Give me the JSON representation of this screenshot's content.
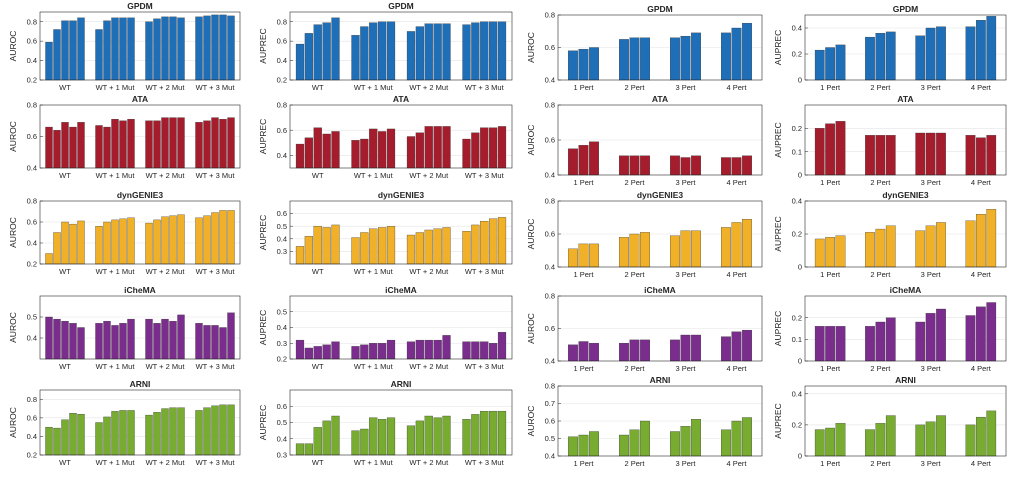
{
  "panel_colors": {
    "GPDM": "#1f6fb8",
    "ATA": "#a51d2d",
    "dynGENIE3": "#f0b128",
    "iCheMA": "#7b2d8e",
    "ARNI": "#77ac30"
  },
  "chart_data": [
    {
      "type": "bar",
      "title": "GPDM",
      "ylabel": "AUROC",
      "ylim": [
        0.2,
        0.9
      ],
      "yticks": [
        "0.2",
        "0.4",
        "0.6",
        "0.8"
      ],
      "categories": [
        "WT",
        "WT + 1 Mut",
        "WT + 2 Mut",
        "WT + 3 Mut"
      ],
      "values": [
        [
          0.59,
          0.72,
          0.81,
          0.81,
          0.84
        ],
        [
          0.72,
          0.81,
          0.84,
          0.84,
          0.84
        ],
        [
          0.8,
          0.83,
          0.85,
          0.85,
          0.84
        ],
        [
          0.85,
          0.86,
          0.87,
          0.87,
          0.86
        ]
      ],
      "grid": true
    },
    {
      "type": "bar",
      "title": "GPDM",
      "ylabel": "AUPREC",
      "ylim": [
        0.2,
        0.9
      ],
      "yticks": [
        "0.2",
        "0.4",
        "0.6",
        "0.8"
      ],
      "categories": [
        "WT",
        "WT + 1 Mut",
        "WT + 2 Mut",
        "WT + 3 Mut"
      ],
      "values": [
        [
          0.57,
          0.68,
          0.77,
          0.79,
          0.84
        ],
        [
          0.66,
          0.75,
          0.79,
          0.8,
          0.8
        ],
        [
          0.7,
          0.75,
          0.78,
          0.78,
          0.78
        ],
        [
          0.77,
          0.79,
          0.8,
          0.8,
          0.8
        ]
      ],
      "grid": true
    },
    {
      "type": "bar",
      "title": "ATA",
      "ylabel": "AUROC",
      "ylim": [
        0.4,
        0.8
      ],
      "yticks": [
        "0.4",
        "0.6",
        "0.8"
      ],
      "categories": [
        "WT",
        "WT + 1 Mut",
        "WT + 2 Mut",
        "WT + 3 Mut"
      ],
      "values": [
        [
          0.66,
          0.64,
          0.69,
          0.66,
          0.69
        ],
        [
          0.67,
          0.66,
          0.71,
          0.7,
          0.71
        ],
        [
          0.7,
          0.7,
          0.72,
          0.72,
          0.72
        ],
        [
          0.69,
          0.7,
          0.72,
          0.71,
          0.72
        ]
      ],
      "grid": true
    },
    {
      "type": "bar",
      "title": "ATA",
      "ylabel": "AUPREC",
      "ylim": [
        0.3,
        0.8
      ],
      "yticks": [
        "0.4",
        "0.6",
        "0.8"
      ],
      "categories": [
        "WT",
        "WT + 1 Mut",
        "WT + 2 Mut",
        "WT + 3 Mut"
      ],
      "values": [
        [
          0.49,
          0.54,
          0.62,
          0.57,
          0.59
        ],
        [
          0.52,
          0.53,
          0.61,
          0.59,
          0.61
        ],
        [
          0.55,
          0.58,
          0.63,
          0.63,
          0.63
        ],
        [
          0.53,
          0.58,
          0.62,
          0.62,
          0.63
        ]
      ],
      "grid": true
    },
    {
      "type": "bar",
      "title": "dynGENIE3",
      "ylabel": "AUROC",
      "ylim": [
        0.2,
        0.8
      ],
      "yticks": [
        "0.2",
        "0.4",
        "0.6",
        "0.8"
      ],
      "categories": [
        "WT",
        "WT + 1 Mut",
        "WT + 2 Mut",
        "WT + 3 Mut"
      ],
      "values": [
        [
          0.3,
          0.5,
          0.6,
          0.58,
          0.61
        ],
        [
          0.56,
          0.6,
          0.62,
          0.63,
          0.64
        ],
        [
          0.59,
          0.62,
          0.65,
          0.66,
          0.67
        ],
        [
          0.64,
          0.66,
          0.69,
          0.71,
          0.71
        ]
      ],
      "grid": true
    },
    {
      "type": "bar",
      "title": "dynGENIE3",
      "ylabel": "AUPREC",
      "ylim": [
        0.2,
        0.7
      ],
      "yticks": [
        "0.3",
        "0.4",
        "0.5",
        "0.6"
      ],
      "categories": [
        "WT",
        "WT + 1 Mut",
        "WT + 2 Mut",
        "WT + 3 Mut"
      ],
      "values": [
        [
          0.34,
          0.42,
          0.5,
          0.49,
          0.51
        ],
        [
          0.41,
          0.45,
          0.48,
          0.49,
          0.5
        ],
        [
          0.43,
          0.45,
          0.47,
          0.48,
          0.49
        ],
        [
          0.46,
          0.51,
          0.54,
          0.56,
          0.57
        ]
      ],
      "grid": true
    },
    {
      "type": "bar",
      "title": "iCheMA",
      "ylabel": "AUROC",
      "ylim": [
        0.3,
        0.6
      ],
      "yticks": [
        "0.4",
        "0.5"
      ],
      "categories": [
        "WT",
        "WT + 1 Mut",
        "WT + 2 Mut",
        "WT + 3 Mut"
      ],
      "values": [
        [
          0.5,
          0.49,
          0.48,
          0.47,
          0.45
        ],
        [
          0.47,
          0.48,
          0.46,
          0.47,
          0.49
        ],
        [
          0.49,
          0.47,
          0.49,
          0.48,
          0.51
        ],
        [
          0.47,
          0.46,
          0.46,
          0.45,
          0.52
        ]
      ],
      "grid": true
    },
    {
      "type": "bar",
      "title": "iCheMA",
      "ylabel": "AUPREC",
      "ylim": [
        0.2,
        0.6
      ],
      "yticks": [
        "0.2",
        "0.3",
        "0.4",
        "0.5"
      ],
      "categories": [
        "WT",
        "WT + 1 Mut",
        "WT + 2 Mut",
        "WT + 3 Mut"
      ],
      "values": [
        [
          0.32,
          0.27,
          0.28,
          0.29,
          0.31
        ],
        [
          0.28,
          0.29,
          0.3,
          0.3,
          0.32
        ],
        [
          0.31,
          0.32,
          0.32,
          0.32,
          0.35
        ],
        [
          0.31,
          0.31,
          0.31,
          0.3,
          0.37
        ]
      ],
      "grid": true
    },
    {
      "type": "bar",
      "title": "ARNI",
      "ylabel": "AUROC",
      "ylim": [
        0.2,
        0.9
      ],
      "yticks": [
        "0.2",
        "0.4",
        "0.6",
        "0.8"
      ],
      "categories": [
        "WT",
        "WT + 1 Mut",
        "WT + 2 Mut",
        "WT + 3 Mut"
      ],
      "values": [
        [
          0.5,
          0.49,
          0.58,
          0.65,
          0.64
        ],
        [
          0.55,
          0.61,
          0.67,
          0.68,
          0.68
        ],
        [
          0.63,
          0.66,
          0.7,
          0.71,
          0.71
        ],
        [
          0.68,
          0.71,
          0.73,
          0.74,
          0.74
        ]
      ],
      "grid": true
    },
    {
      "type": "bar",
      "title": "ARNI",
      "ylabel": "AUPREC",
      "ylim": [
        0.3,
        0.7
      ],
      "yticks": [
        "0.3",
        "0.4",
        "0.5",
        "0.6"
      ],
      "categories": [
        "WT",
        "WT + 1 Mut",
        "WT + 2 Mut",
        "WT + 3 Mut"
      ],
      "values": [
        [
          0.37,
          0.37,
          0.47,
          0.51,
          0.54
        ],
        [
          0.45,
          0.46,
          0.53,
          0.52,
          0.53
        ],
        [
          0.48,
          0.51,
          0.54,
          0.53,
          0.54
        ],
        [
          0.52,
          0.55,
          0.57,
          0.57,
          0.57
        ]
      ],
      "grid": true
    },
    {
      "type": "bar",
      "title": "GPDM",
      "ylabel": "AUROC",
      "ylim": [
        0.4,
        0.8
      ],
      "yticks": [
        "0.4",
        "0.6",
        "0.8"
      ],
      "categories": [
        "1 Pert",
        "2 Pert",
        "3 Pert",
        "4 Pert"
      ],
      "values": [
        [
          0.58,
          0.59,
          0.6
        ],
        [
          0.65,
          0.66,
          0.66
        ],
        [
          0.66,
          0.67,
          0.69
        ],
        [
          0.69,
          0.72,
          0.75
        ]
      ],
      "grid": true
    },
    {
      "type": "bar",
      "title": "GPDM",
      "ylabel": "AUPREC",
      "ylim": [
        0.0,
        0.5
      ],
      "yticks": [
        "0",
        "0.2",
        "0.4"
      ],
      "categories": [
        "1 Pert",
        "2 Pert",
        "3 Pert",
        "4 Pert"
      ],
      "values": [
        [
          0.23,
          0.25,
          0.27
        ],
        [
          0.33,
          0.36,
          0.37
        ],
        [
          0.34,
          0.4,
          0.41
        ],
        [
          0.41,
          0.46,
          0.49
        ]
      ],
      "grid": true
    },
    {
      "type": "bar",
      "title": "ATA",
      "ylabel": "AUROC",
      "ylim": [
        0.4,
        0.8
      ],
      "yticks": [
        "0.4",
        "0.6",
        "0.8"
      ],
      "categories": [
        "1 Pert",
        "2 Pert",
        "3 Pert",
        "4 Pert"
      ],
      "values": [
        [
          0.55,
          0.57,
          0.59
        ],
        [
          0.51,
          0.51,
          0.51
        ],
        [
          0.51,
          0.5,
          0.51
        ],
        [
          0.5,
          0.5,
          0.51
        ]
      ],
      "grid": true
    },
    {
      "type": "bar",
      "title": "ATA",
      "ylabel": "AUPREC",
      "ylim": [
        0.0,
        0.3
      ],
      "yticks": [
        "0",
        "0.1",
        "0.2"
      ],
      "categories": [
        "1 Pert",
        "2 Pert",
        "3 Pert",
        "4 Pert"
      ],
      "values": [
        [
          0.2,
          0.22,
          0.23
        ],
        [
          0.17,
          0.17,
          0.17
        ],
        [
          0.18,
          0.18,
          0.18
        ],
        [
          0.17,
          0.16,
          0.17
        ]
      ],
      "grid": true
    },
    {
      "type": "bar",
      "title": "dynGENIE3",
      "ylabel": "AUROC",
      "ylim": [
        0.4,
        0.8
      ],
      "yticks": [
        "0.4",
        "0.6",
        "0.8"
      ],
      "categories": [
        "1 Pert",
        "2 Pert",
        "3 Pert",
        "4 Pert"
      ],
      "values": [
        [
          0.51,
          0.54,
          0.54
        ],
        [
          0.58,
          0.6,
          0.61
        ],
        [
          0.59,
          0.62,
          0.62
        ],
        [
          0.64,
          0.67,
          0.69
        ]
      ],
      "grid": true
    },
    {
      "type": "bar",
      "title": "dynGENIE3",
      "ylabel": "AUPREC",
      "ylim": [
        0.0,
        0.4
      ],
      "yticks": [
        "0",
        "0.2",
        "0.4"
      ],
      "categories": [
        "1 Pert",
        "2 Pert",
        "3 Pert",
        "4 Pert"
      ],
      "values": [
        [
          0.17,
          0.18,
          0.19
        ],
        [
          0.21,
          0.23,
          0.25
        ],
        [
          0.22,
          0.25,
          0.27
        ],
        [
          0.28,
          0.32,
          0.35
        ]
      ],
      "grid": true
    },
    {
      "type": "bar",
      "title": "iCheMA",
      "ylabel": "AUROC",
      "ylim": [
        0.4,
        0.8
      ],
      "yticks": [
        "0.4",
        "0.6",
        "0.8"
      ],
      "categories": [
        "1 Pert",
        "2 Pert",
        "3 Pert",
        "4 Pert"
      ],
      "values": [
        [
          0.5,
          0.52,
          0.51
        ],
        [
          0.51,
          0.53,
          0.53
        ],
        [
          0.53,
          0.56,
          0.56
        ],
        [
          0.55,
          0.58,
          0.59
        ]
      ],
      "grid": true
    },
    {
      "type": "bar",
      "title": "iCheMA",
      "ylabel": "AUPREC",
      "ylim": [
        0.0,
        0.3
      ],
      "yticks": [
        "0",
        "0.1",
        "0.2"
      ],
      "categories": [
        "1 Pert",
        "2 Pert",
        "3 Pert",
        "4 Pert"
      ],
      "values": [
        [
          0.16,
          0.16,
          0.16
        ],
        [
          0.16,
          0.18,
          0.2
        ],
        [
          0.18,
          0.22,
          0.24
        ],
        [
          0.21,
          0.25,
          0.27
        ]
      ],
      "grid": true
    },
    {
      "type": "bar",
      "title": "ARNI",
      "ylabel": "AUROC",
      "ylim": [
        0.4,
        0.8
      ],
      "yticks": [
        "0.4",
        "0.5",
        "0.6",
        "0.7",
        "0.8"
      ],
      "categories": [
        "1 Pert",
        "2 Pert",
        "3 Pert",
        "4 Pert"
      ],
      "values": [
        [
          0.51,
          0.52,
          0.54
        ],
        [
          0.52,
          0.55,
          0.6
        ],
        [
          0.54,
          0.57,
          0.61
        ],
        [
          0.55,
          0.6,
          0.62
        ]
      ],
      "grid": true
    },
    {
      "type": "bar",
      "title": "ARNI",
      "ylabel": "AUPREC",
      "ylim": [
        0.0,
        0.45
      ],
      "yticks": [
        "0",
        "0.2",
        "0.4"
      ],
      "categories": [
        "1 Pert",
        "2 Pert",
        "3 Pert",
        "4 Pert"
      ],
      "values": [
        [
          0.17,
          0.18,
          0.21
        ],
        [
          0.17,
          0.21,
          0.26
        ],
        [
          0.2,
          0.22,
          0.26
        ],
        [
          0.2,
          0.25,
          0.29
        ]
      ],
      "grid": true
    }
  ]
}
